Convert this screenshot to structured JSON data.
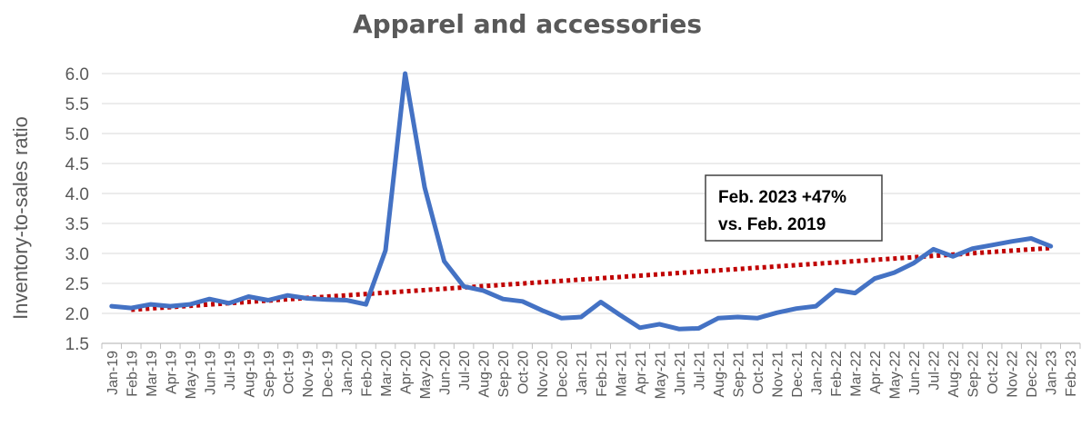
{
  "chart_data": {
    "type": "line",
    "title": "Apparel and accessories",
    "ylabel": "Inventory-to-sales ratio",
    "xlabel": "",
    "ylim": [
      1.5,
      6.0
    ],
    "y_ticks": [
      "6.0",
      "5.5",
      "5.0",
      "4.5",
      "4.0",
      "3.5",
      "3.0",
      "2.5",
      "2.0",
      "1.5"
    ],
    "y_tick_values": [
      6.0,
      5.5,
      5.0,
      4.5,
      4.0,
      3.5,
      3.0,
      2.5,
      2.0,
      1.5
    ],
    "grid": "horizontal",
    "categories": [
      "Jan-19",
      "Feb-19",
      "Mar-19",
      "Apr-19",
      "May-19",
      "Jun-19",
      "Jul-19",
      "Aug-19",
      "Sep-19",
      "Oct-19",
      "Nov-19",
      "Dec-19",
      "Jan-20",
      "Feb-20",
      "Mar-20",
      "Apr-20",
      "May-20",
      "Jun-20",
      "Jul-20",
      "Aug-20",
      "Sep-20",
      "Oct-20",
      "Nov-20",
      "Dec-20",
      "Jan-21",
      "Feb-21",
      "Mar-21",
      "Apr-21",
      "May-21",
      "Jun-21",
      "Jul-21",
      "Aug-21",
      "Sep-21",
      "Oct-21",
      "Nov-21",
      "Dec-21",
      "Jan-22",
      "Feb-22",
      "Mar-22",
      "Apr-22",
      "May-22",
      "Jun-22",
      "Jul-22",
      "Aug-22",
      "Sep-22",
      "Oct-22",
      "Nov-22",
      "Dec-22",
      "Jan-23",
      "Feb-23"
    ],
    "series": [
      {
        "color": "#4472C4",
        "values": [
          2.12,
          2.09,
          2.15,
          2.12,
          2.15,
          2.24,
          2.17,
          2.28,
          2.22,
          2.3,
          2.25,
          2.23,
          2.22,
          2.15,
          3.05,
          6.0,
          4.1,
          2.87,
          2.45,
          2.38,
          2.24,
          2.2,
          2.05,
          1.92,
          1.94,
          2.19,
          1.97,
          1.76,
          1.82,
          1.74,
          1.75,
          1.92,
          1.94,
          1.92,
          2.01,
          2.08,
          2.12,
          2.39,
          2.34,
          2.58,
          2.68,
          2.84,
          3.07,
          2.95,
          3.08,
          3.14,
          3.2,
          3.25,
          3.12,
          null
        ]
      }
    ],
    "trendline": {
      "color": "#C00000",
      "style": "dotted",
      "from": {
        "category": "Feb-19",
        "value": 2.06
      },
      "to": {
        "category": "Jan-23",
        "value": 3.09
      }
    },
    "annotation": {
      "lines": [
        "Feb. 2023 +47%",
        "vs. Feb. 2019"
      ]
    }
  }
}
